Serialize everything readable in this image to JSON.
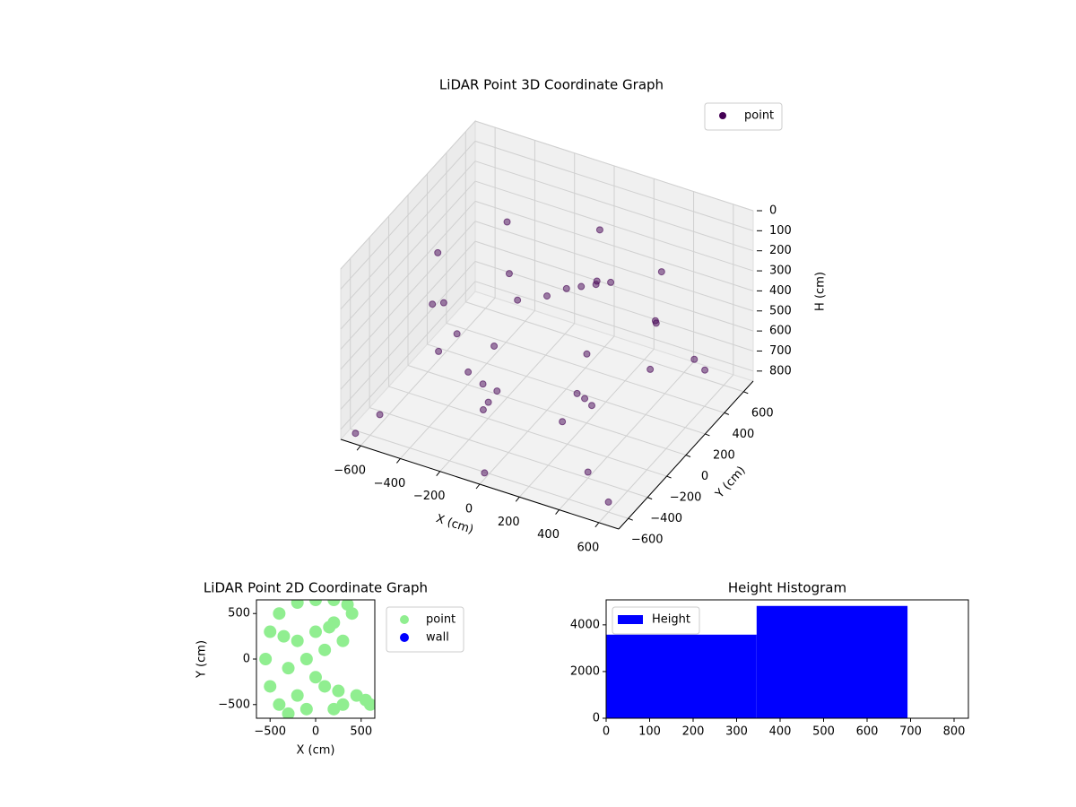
{
  "chart_data": [
    {
      "type": "scatter3d",
      "title": "LiDAR Point 3D Coordinate Graph",
      "xlabel": "X (cm)",
      "ylabel": "Y (cm)",
      "zlabel": "H (cm)",
      "xlim": [
        -700,
        700
      ],
      "ylim": [
        -700,
        700
      ],
      "zlim": [
        0,
        850
      ],
      "z_inverted": true,
      "xticks": [
        {
          "value": -600,
          "label": "−600"
        },
        {
          "value": -400,
          "label": "−400"
        },
        {
          "value": -200,
          "label": "−200"
        },
        0,
        200,
        400,
        600
      ],
      "yticks": [
        {
          "value": -600,
          "label": "−600"
        },
        {
          "value": -400,
          "label": "−400"
        },
        {
          "value": -200,
          "label": "−200"
        },
        0,
        200,
        400,
        600
      ],
      "zticks": [
        0,
        100,
        200,
        300,
        400,
        500,
        600,
        700,
        800
      ],
      "grid": true,
      "legend": "upper right",
      "series": [
        {
          "name": "point",
          "color": "#440154",
          "x": [
            550,
            389,
            0,
            -389,
            -550,
            -389,
            0,
            389,
            520,
            368,
            0,
            -368,
            -520,
            -368,
            0,
            368,
            100,
            150,
            50,
            200,
            0,
            -100,
            -300,
            -250,
            -200,
            -150,
            200,
            250,
            150,
            -600,
            600,
            -650,
            650,
            -550,
            400,
            0,
            500
          ],
          "y": [
            0,
            389,
            550,
            389,
            0,
            -389,
            -550,
            -389,
            0,
            368,
            520,
            368,
            0,
            -368,
            -520,
            -368,
            150,
            200,
            100,
            250,
            0,
            -100,
            -200,
            -150,
            -250,
            -300,
            -100,
            -50,
            -150,
            -500,
            -600,
            -650,
            300,
            200,
            -400,
            -650,
            500
          ],
          "z": [
            240,
            240,
            240,
            240,
            240,
            240,
            240,
            240,
            480,
            480,
            480,
            480,
            480,
            480,
            480,
            480,
            280,
            280,
            280,
            280,
            280,
            280,
            650,
            720,
            780,
            700,
            650,
            720,
            780,
            800,
            800,
            830,
            600,
            750,
            820,
            820,
            700
          ]
        }
      ]
    },
    {
      "type": "scatter",
      "title": "LiDAR Point 2D Coordinate Graph",
      "xlabel": "X (cm)",
      "ylabel": "Y (cm)",
      "xlim": [
        -650,
        650
      ],
      "ylim": [
        -650,
        650
      ],
      "xticks": [
        {
          "value": -500,
          "label": "−500"
        },
        0,
        500
      ],
      "yticks": [
        {
          "value": -500,
          "label": "−500"
        },
        0,
        500
      ],
      "legend": "outside upper right",
      "series": [
        {
          "name": "point",
          "color": "#90ee90",
          "x": [
            -550,
            -500,
            -400,
            -200,
            0,
            200,
            350,
            -500,
            -400,
            -300,
            -200,
            0,
            200,
            300,
            100,
            -100,
            0,
            -200,
            -100,
            200,
            300,
            250,
            450,
            550,
            600,
            100,
            -300,
            150,
            -350,
            400
          ],
          "y": [
            0,
            300,
            500,
            620,
            650,
            650,
            600,
            -300,
            -500,
            -100,
            200,
            300,
            400,
            200,
            100,
            0,
            -200,
            -400,
            -550,
            -550,
            -500,
            -350,
            -400,
            -450,
            -500,
            -300,
            -600,
            350,
            250,
            500
          ]
        },
        {
          "name": "wall",
          "color": "#0000ff",
          "x": [],
          "y": []
        }
      ]
    },
    {
      "type": "histogram",
      "title": "Height Histogram",
      "bins": [
        0,
        346,
        693
      ],
      "xlim": [
        0,
        833
      ],
      "ylim": [
        0,
        5070
      ],
      "xticks": [
        0,
        100,
        200,
        300,
        400,
        500,
        600,
        700,
        800
      ],
      "yticks": [
        0,
        2000,
        4000
      ],
      "legend": "upper left",
      "series": [
        {
          "name": "Height",
          "color": "#0000ff",
          "values": [
            3580,
            4810
          ]
        }
      ]
    }
  ]
}
